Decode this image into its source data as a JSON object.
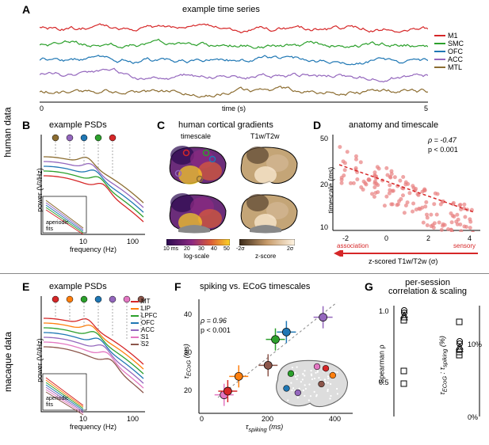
{
  "side_labels": {
    "human": "human data",
    "macaque": "macaque data"
  },
  "panels": {
    "A": {
      "label": "A",
      "title": "example time series",
      "xlabel": "time (s)",
      "xmin": "0",
      "xmax": "5"
    },
    "B": {
      "label": "B",
      "title": "example PSDs",
      "xlabel": "frequency (Hz)",
      "ylabel": "power (V²/Hz)",
      "inset": "aperiodic\nfits",
      "xticks": [
        "10",
        "100"
      ]
    },
    "C": {
      "label": "C",
      "title": "human cortical gradients",
      "sub1": "timescale",
      "sub2": "T1w/T2w",
      "bar1_label": "log-scale",
      "bar1_ticks": [
        "10 ms",
        "20",
        "30",
        "40",
        "50"
      ],
      "bar2_label": "z-score",
      "bar2_ticks": [
        "-2σ",
        "2σ"
      ]
    },
    "D": {
      "label": "D",
      "title": "anatomy and timescale",
      "xlabel": "z-scored T1w/T2w (σ)",
      "ylabel": "timescale (ms)",
      "stat_rho": "ρ = -0.47",
      "stat_p": "p < 0.001",
      "arrow_left": "association",
      "arrow_right": "sensory",
      "xticks": [
        "-2",
        "0",
        "2",
        "4"
      ],
      "yticks": [
        "10",
        "20",
        "50"
      ]
    },
    "E": {
      "label": "E",
      "title": "example PSDs",
      "xlabel": "frequency (Hz)",
      "ylabel": "power (V²/Hz)",
      "inset": "aperiodic\nfits",
      "xticks": [
        "10",
        "100"
      ]
    },
    "F": {
      "label": "F",
      "title": "spiking vs. ECoG timescales",
      "xlabel": "τ_spiking (ms)",
      "ylabel": "τ_ECoG (ms)",
      "stat_rho": "ρ = 0.96",
      "stat_p": "p < 0.001",
      "xticks": [
        "0",
        "200",
        "400"
      ],
      "yticks": [
        "20",
        "30",
        "40"
      ]
    },
    "G": {
      "label": "G",
      "title": "per-session\ncorrelation & scaling",
      "ylabel1": "Spearman ρ",
      "ylabel2": "τ_ECoG : τ_spiking (%)",
      "yticks1": [
        "0.5",
        "1.0"
      ],
      "yticks2": [
        "0%",
        "10%"
      ]
    }
  },
  "regions_human": [
    {
      "name": "M1",
      "color": "#d62728"
    },
    {
      "name": "SMC",
      "color": "#2ca02c"
    },
    {
      "name": "OFC",
      "color": "#1f77b4"
    },
    {
      "name": "ACC",
      "color": "#9467bd"
    },
    {
      "name": "MTL",
      "color": "#8c6d31"
    }
  ],
  "regions_macaque": [
    {
      "name": "MT",
      "color": "#d62728"
    },
    {
      "name": "LIP",
      "color": "#ff7f0e"
    },
    {
      "name": "LPFC",
      "color": "#2ca02c"
    },
    {
      "name": "OFC",
      "color": "#1f77b4"
    },
    {
      "name": "ACC",
      "color": "#9467bd"
    },
    {
      "name": "S1",
      "color": "#e377c2"
    },
    {
      "name": "S2",
      "color": "#8c564b"
    }
  ],
  "colors": {
    "bg": "#ffffff",
    "text": "#000000",
    "scatter_D": "#e88080",
    "fit_D": "#d62728",
    "divider": "#888888"
  },
  "panelA_traces": {
    "xrange": [
      0,
      500
    ],
    "offsets": [
      20,
      40,
      60,
      80,
      100
    ]
  },
  "panelD_scatter": {
    "n_approx": 150,
    "xlim": [
      -2.5,
      4
    ],
    "ylim": [
      8,
      55
    ]
  },
  "panelF_points": [
    {
      "x": 60,
      "y": 20,
      "color": "#e377c2"
    },
    {
      "x": 70,
      "y": 21,
      "color": "#d62728"
    },
    {
      "x": 100,
      "y": 25,
      "color": "#ff7f0e"
    },
    {
      "x": 180,
      "y": 28,
      "color": "#8c564b"
    },
    {
      "x": 200,
      "y": 35,
      "color": "#2ca02c"
    },
    {
      "x": 230,
      "y": 37,
      "color": "#1f77b4"
    },
    {
      "x": 330,
      "y": 41,
      "color": "#9467bd"
    }
  ]
}
